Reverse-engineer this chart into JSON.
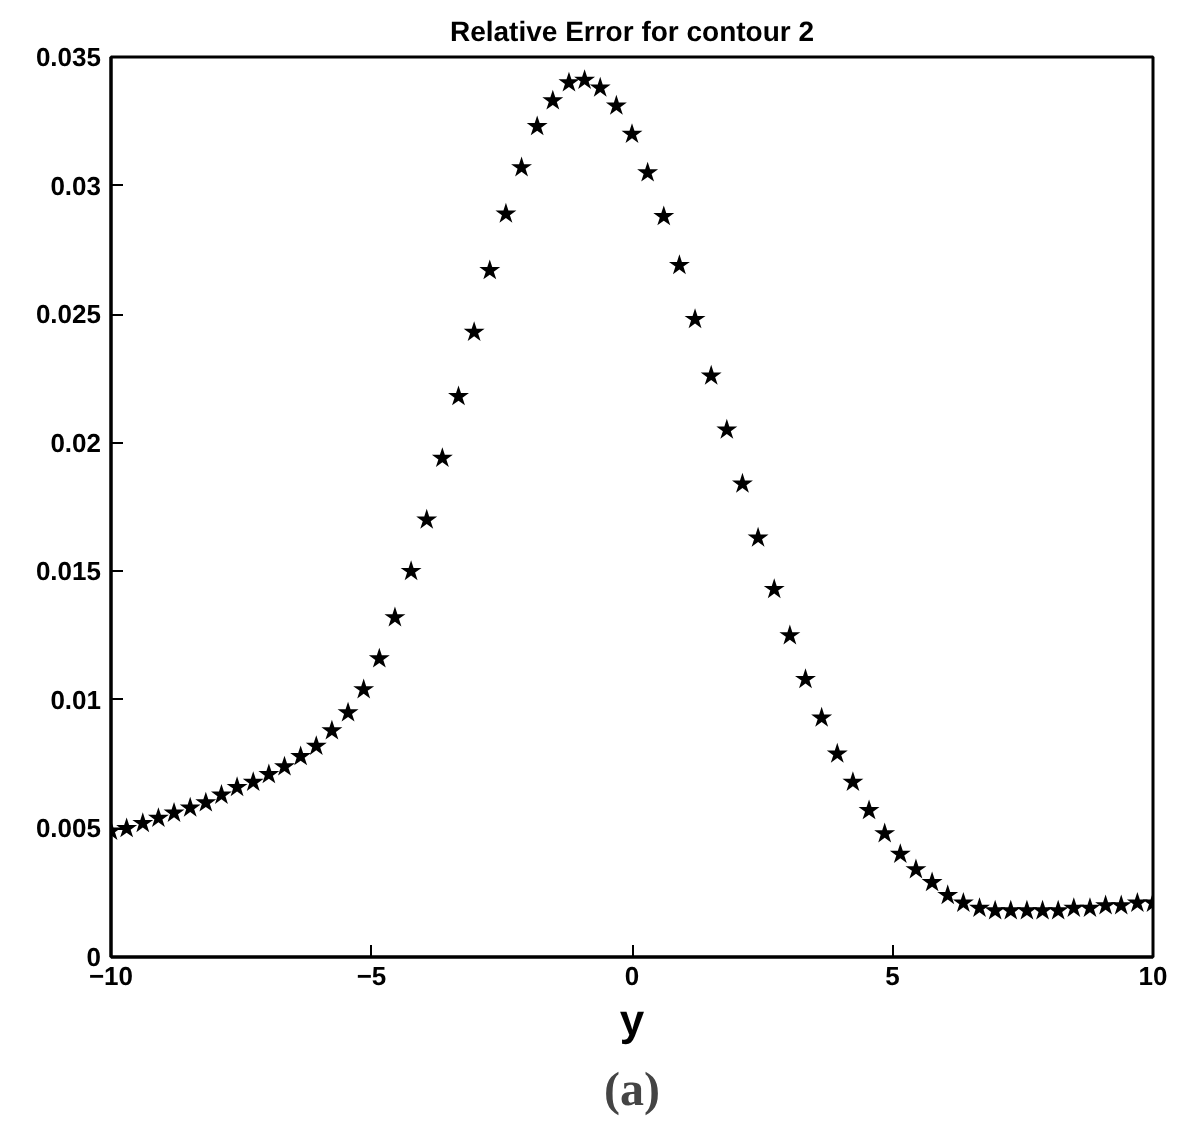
{
  "chart_data": {
    "type": "scatter",
    "title": "Relative Error for contour 2",
    "xlabel": "y",
    "annotations": [
      "(a)"
    ],
    "x": [
      -10,
      -9.7,
      -9.39,
      -9.09,
      -8.79,
      -8.48,
      -8.18,
      -7.88,
      -7.58,
      -7.27,
      -6.97,
      -6.67,
      -6.36,
      -6.06,
      -5.76,
      -5.45,
      -5.15,
      -4.85,
      -4.55,
      -4.24,
      -3.94,
      -3.64,
      -3.33,
      -3.03,
      -2.73,
      -2.42,
      -2.12,
      -1.82,
      -1.52,
      -1.21,
      -0.91,
      -0.61,
      -0.3,
      0,
      0.3,
      0.61,
      0.91,
      1.21,
      1.52,
      1.82,
      2.12,
      2.42,
      2.73,
      3.03,
      3.33,
      3.64,
      3.94,
      4.24,
      4.55,
      4.85,
      5.15,
      5.45,
      5.76,
      6.06,
      6.36,
      6.67,
      6.97,
      7.27,
      7.58,
      7.88,
      8.18,
      8.48,
      8.79,
      9.09,
      9.39,
      9.7,
      10
    ],
    "series": [
      {
        "color": "#000000",
        "values": [
          0.0049,
          0.005,
          0.0052,
          0.0054,
          0.0056,
          0.0058,
          0.006,
          0.0063,
          0.0066,
          0.0068,
          0.0071,
          0.0074,
          0.0078,
          0.0082,
          0.0088,
          0.0095,
          0.0104,
          0.0116,
          0.0132,
          0.015,
          0.017,
          0.0194,
          0.0218,
          0.0243,
          0.0267,
          0.0289,
          0.0307,
          0.0323,
          0.0333,
          0.034,
          0.0341,
          0.0338,
          0.0331,
          0.032,
          0.0305,
          0.0288,
          0.0269,
          0.0248,
          0.0226,
          0.0205,
          0.0184,
          0.0163,
          0.0143,
          0.0125,
          0.0108,
          0.0093,
          0.0079,
          0.0068,
          0.0057,
          0.0048,
          0.004,
          0.0034,
          0.0029,
          0.0024,
          0.0021,
          0.0019,
          0.0018,
          0.0018,
          0.0018,
          0.0018,
          0.0018,
          0.0019,
          0.0019,
          0.002,
          0.002,
          0.0021,
          0.0021
        ]
      }
    ],
    "xlim": [
      -10,
      10
    ],
    "xticks": [
      -10,
      -5,
      0,
      5,
      10
    ],
    "ylim": [
      0,
      0.035
    ],
    "yticks": [
      0,
      0.005,
      0.01,
      0.015,
      0.02,
      0.025,
      0.03,
      0.035
    ],
    "marker": "star",
    "grid": false
  }
}
